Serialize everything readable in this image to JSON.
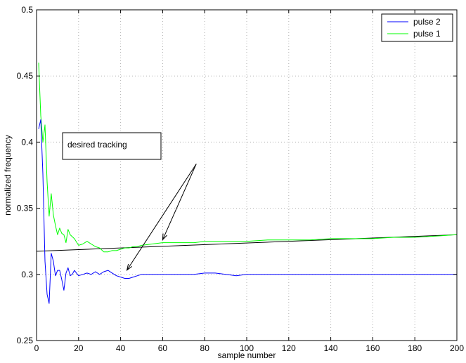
{
  "chart_data": {
    "type": "line",
    "title": "",
    "xlabel": "sample number",
    "ylabel": "normalized frequency",
    "xlim": [
      0,
      200
    ],
    "ylim": [
      0.25,
      0.5
    ],
    "xticks": [
      0,
      20,
      40,
      60,
      80,
      100,
      120,
      140,
      160,
      180,
      200
    ],
    "yticks": [
      0.25,
      0.3,
      0.35,
      0.4,
      0.45,
      0.5
    ],
    "xtick_labels": [
      "0",
      "20",
      "40",
      "60",
      "80",
      "100",
      "120",
      "140",
      "160",
      "180",
      "200"
    ],
    "ytick_labels": [
      "0.25",
      "0.3",
      "0.35",
      "0.4",
      "0.45",
      "0.5"
    ],
    "grid": true,
    "legend_position": "top-right",
    "series": [
      {
        "name": "pulse 2",
        "color": "#0000ff",
        "x": [
          1,
          2,
          3,
          4,
          5,
          6,
          7,
          8,
          9,
          10,
          11,
          12,
          13,
          14,
          15,
          16,
          17,
          18,
          19,
          20,
          22,
          24,
          26,
          28,
          30,
          32,
          34,
          36,
          38,
          40,
          42,
          44,
          46,
          48,
          50,
          55,
          60,
          65,
          70,
          75,
          80,
          85,
          90,
          95,
          100,
          110,
          120,
          130,
          140,
          150,
          160,
          170,
          180,
          190,
          200
        ],
        "y": [
          0.41,
          0.417,
          0.376,
          0.31,
          0.285,
          0.278,
          0.316,
          0.31,
          0.299,
          0.303,
          0.303,
          0.296,
          0.288,
          0.301,
          0.305,
          0.299,
          0.3,
          0.303,
          0.301,
          0.299,
          0.3,
          0.301,
          0.3,
          0.302,
          0.3,
          0.302,
          0.303,
          0.301,
          0.299,
          0.298,
          0.297,
          0.297,
          0.298,
          0.299,
          0.3,
          0.3,
          0.3,
          0.3,
          0.3,
          0.3,
          0.301,
          0.301,
          0.3,
          0.299,
          0.3,
          0.3,
          0.3,
          0.3,
          0.3,
          0.3,
          0.3,
          0.3,
          0.3,
          0.3,
          0.3
        ]
      },
      {
        "name": "pulse 1",
        "color": "#00ff00",
        "x": [
          1,
          2,
          3,
          4,
          5,
          6,
          7,
          8,
          9,
          10,
          11,
          12,
          13,
          14,
          15,
          16,
          18,
          20,
          22,
          24,
          26,
          28,
          30,
          32,
          34,
          36,
          38,
          40,
          42,
          44,
          46,
          48,
          50,
          55,
          60,
          65,
          70,
          75,
          80,
          90,
          100,
          110,
          120,
          130,
          140,
          150,
          160,
          170,
          180,
          190,
          200
        ],
        "y": [
          0.46,
          0.42,
          0.4,
          0.413,
          0.37,
          0.344,
          0.361,
          0.345,
          0.337,
          0.33,
          0.335,
          0.331,
          0.33,
          0.324,
          0.334,
          0.33,
          0.327,
          0.322,
          0.323,
          0.325,
          0.323,
          0.321,
          0.32,
          0.317,
          0.317,
          0.318,
          0.318,
          0.319,
          0.32,
          0.32,
          0.321,
          0.321,
          0.322,
          0.323,
          0.324,
          0.324,
          0.324,
          0.324,
          0.325,
          0.325,
          0.325,
          0.326,
          0.326,
          0.326,
          0.327,
          0.327,
          0.327,
          0.328,
          0.328,
          0.329,
          0.33
        ]
      }
    ],
    "reference_line": {
      "color": "#000000",
      "x": [
        0,
        200
      ],
      "y": [
        0.3175,
        0.33
      ]
    },
    "annotation": {
      "text": "desired tracking",
      "arrow_tail": [
        75,
        0.392
      ],
      "arrow_targets": [
        [
          60,
          0.323
        ],
        [
          43,
          0.3
        ]
      ]
    }
  }
}
